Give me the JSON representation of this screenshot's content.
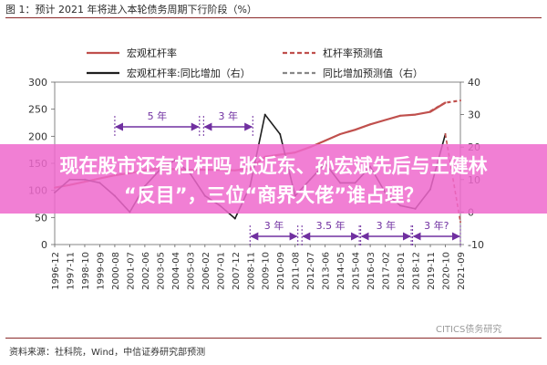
{
  "figure_title": "图 1：预计 2021 年将进入本轮债务周期下行阶段（%）",
  "headline": {
    "line1": "现在股市还有杠杆吗 张近东、孙宏斌先后与王健林",
    "line2": "“反目”，三位“商界大佬”谁占理？"
  },
  "watermark": "CITICS债务研究",
  "source_note": "资料来源：社科院，Wind，中信证券研究部预测",
  "colors": {
    "leverage": "#c0504d",
    "yoy": "#1f1f1f",
    "annotation": "#7030a0",
    "overlay": "#ee69cd",
    "rule": "#8b2a2a"
  },
  "chart_data": {
    "type": "line",
    "x": [
      "1996-12",
      "1997-11",
      "1998-10",
      "1999-09",
      "2000-08",
      "2001-07",
      "2002-06",
      "2003-05",
      "2004-04",
      "2005-03",
      "2006-02",
      "2007-01",
      "2007-12",
      "2008-11",
      "2009-10",
      "2010-09",
      "2011-08",
      "2012-07",
      "2013-06",
      "2014-05",
      "2015-04",
      "2016-03",
      "2017-02",
      "2018-01",
      "2018-12",
      "2019-11",
      "2020-10",
      "2021-09"
    ],
    "left_axis": {
      "ylim": [
        0,
        300
      ],
      "ticks": [
        "0",
        "50",
        "100",
        "150",
        "200",
        "250",
        "300"
      ]
    },
    "right_axis": {
      "ylim": [
        -10,
        40
      ],
      "ticks": [
        "-10",
        "0",
        "10",
        "20",
        "30",
        "40"
      ]
    },
    "legend": {
      "placement": "top",
      "entries": [
        {
          "label": "宏观杠杆率",
          "style": "solid",
          "color": "#c0504d"
        },
        {
          "label": "杠杆率预测值",
          "style": "dashed",
          "color": "#c0504d"
        },
        {
          "label": "宏观杠杆率:同比增加（右）",
          "style": "solid",
          "color": "#1f1f1f"
        },
        {
          "label": "同比增加预测值（右）",
          "style": "dashed",
          "color": "#888888"
        }
      ]
    },
    "series": [
      {
        "name": "宏观杠杆率",
        "axis": "left",
        "style": "solid",
        "x": [
          "1996-12",
          "1997-11",
          "1998-10",
          "1999-09",
          "2000-08",
          "2001-07",
          "2002-06",
          "2003-05",
          "2004-04",
          "2005-03",
          "2006-02",
          "2007-01",
          "2007-12",
          "2008-11",
          "2009-10",
          "2010-09",
          "2011-08",
          "2012-07",
          "2013-06",
          "2014-05",
          "2015-04",
          "2016-03",
          "2017-02",
          "2018-01",
          "2018-12",
          "2019-11",
          "2020-10"
        ],
        "values": [
          105,
          110,
          116,
          122,
          128,
          132,
          137,
          141,
          139,
          138,
          138,
          138,
          137,
          140,
          162,
          166,
          170,
          180,
          192,
          204,
          212,
          222,
          230,
          238,
          240,
          245,
          262
        ]
      },
      {
        "name": "杠杆率预测值",
        "axis": "left",
        "style": "dashed",
        "x": [
          "2019-11",
          "2020-10",
          "2021-09"
        ],
        "values": [
          246,
          262,
          266
        ]
      },
      {
        "name": "宏观杠杆率:同比增加（右）",
        "axis": "right",
        "style": "solid",
        "x": [
          "1996-12",
          "1997-11",
          "1998-10",
          "1999-09",
          "2000-08",
          "2001-07",
          "2002-06",
          "2003-05",
          "2004-04",
          "2005-03",
          "2006-02",
          "2007-01",
          "2007-12",
          "2008-11",
          "2009-10",
          "2010-09",
          "2011-08",
          "2012-07",
          "2013-06",
          "2014-05",
          "2015-04",
          "2016-03",
          "2017-02",
          "2018-01",
          "2018-12",
          "2019-11",
          "2020-10"
        ],
        "values": [
          6,
          10,
          10,
          9,
          5,
          0,
          8,
          13,
          16,
          12,
          5,
          2,
          -2,
          8,
          30,
          24,
          5,
          10,
          15,
          9,
          9,
          14,
          6,
          2,
          1,
          7,
          24
        ]
      },
      {
        "name": "同比增加预测值（右）",
        "axis": "right",
        "style": "dashed",
        "x": [
          "2020-10",
          "2021-09"
        ],
        "values": [
          24,
          -3
        ]
      }
    ],
    "annotations": [
      {
        "text": "5 年",
        "from": "2000-08",
        "to": "2005-10",
        "row": "upper"
      },
      {
        "text": "3 年",
        "from": "2006-01",
        "to": "2009-01",
        "row": "upper"
      },
      {
        "text": "3 年",
        "from": "2008-11",
        "to": "2011-10",
        "row": "lower"
      },
      {
        "text": "3.5 年",
        "from": "2012-01",
        "to": "2015-07",
        "row": "lower"
      },
      {
        "text": "3 年",
        "from": "2015-08",
        "to": "2018-09",
        "row": "lower"
      },
      {
        "text": "3 年?",
        "from": "2018-10",
        "to": "2021-09",
        "row": "lower"
      }
    ]
  }
}
